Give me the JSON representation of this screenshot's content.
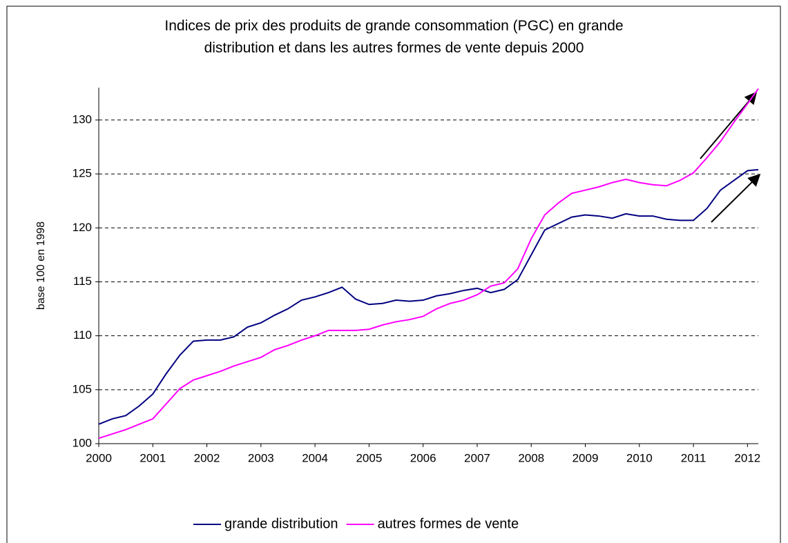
{
  "chart_data": {
    "type": "line",
    "title": "Indices de prix des produits de grande consommation (PGC) en grande\ndistribution et dans les autres formes de vente depuis 2000",
    "y_label": "base 100 en 1998",
    "x": [
      2000,
      2000.25,
      2000.5,
      2000.75,
      2001,
      2001.25,
      2001.5,
      2001.75,
      2002,
      2002.25,
      2002.5,
      2002.75,
      2003,
      2003.25,
      2003.5,
      2003.75,
      2004,
      2004.25,
      2004.5,
      2004.75,
      2005,
      2005.25,
      2005.5,
      2005.75,
      2006,
      2006.25,
      2006.5,
      2006.75,
      2007,
      2007.25,
      2007.5,
      2007.75,
      2008,
      2008.25,
      2008.5,
      2008.75,
      2009,
      2009.25,
      2009.5,
      2009.75,
      2010,
      2010.25,
      2010.5,
      2010.75,
      2011,
      2011.25,
      2011.5,
      2011.75,
      2012,
      2012.2
    ],
    "series": [
      {
        "name": "grande distribution",
        "color": "#000080",
        "values": [
          101.8,
          102.3,
          102.6,
          103.5,
          104.6,
          106.5,
          108.2,
          109.5,
          109.6,
          109.6,
          109.9,
          110.8,
          111.2,
          111.9,
          112.5,
          113.3,
          113.6,
          114.0,
          114.5,
          113.4,
          112.9,
          113.0,
          113.3,
          113.2,
          113.3,
          113.7,
          113.9,
          114.2,
          114.4,
          114.0,
          114.3,
          115.2,
          117.5,
          119.8,
          120.4,
          121.0,
          121.2,
          121.1,
          120.9,
          121.3,
          121.1,
          121.1,
          120.8,
          120.7,
          120.7,
          121.8,
          123.5,
          124.4,
          125.3,
          125.4
        ]
      },
      {
        "name": "autres formes de vente",
        "color": "#ff00ff",
        "values": [
          100.5,
          100.9,
          101.3,
          101.8,
          102.3,
          103.7,
          105.1,
          105.9,
          106.3,
          106.7,
          107.2,
          107.6,
          108.0,
          108.7,
          109.1,
          109.6,
          110.0,
          110.5,
          110.5,
          110.5,
          110.6,
          111.0,
          111.3,
          111.5,
          111.8,
          112.5,
          113.0,
          113.3,
          113.8,
          114.6,
          114.9,
          116.2,
          119.0,
          121.2,
          122.3,
          123.2,
          123.5,
          123.8,
          124.2,
          124.5,
          124.2,
          124.0,
          123.9,
          124.4,
          125.1,
          126.5,
          128.0,
          129.8,
          131.5,
          132.9
        ]
      }
    ],
    "xlim": [
      2000,
      2012.2
    ],
    "xticks": [
      2000,
      2001,
      2002,
      2003,
      2004,
      2005,
      2006,
      2007,
      2008,
      2009,
      2010,
      2011,
      2012
    ],
    "ylim": [
      100,
      133
    ],
    "yticks": [
      100,
      105,
      110,
      115,
      120,
      125,
      130
    ],
    "grid": true,
    "legend": "bottom"
  }
}
